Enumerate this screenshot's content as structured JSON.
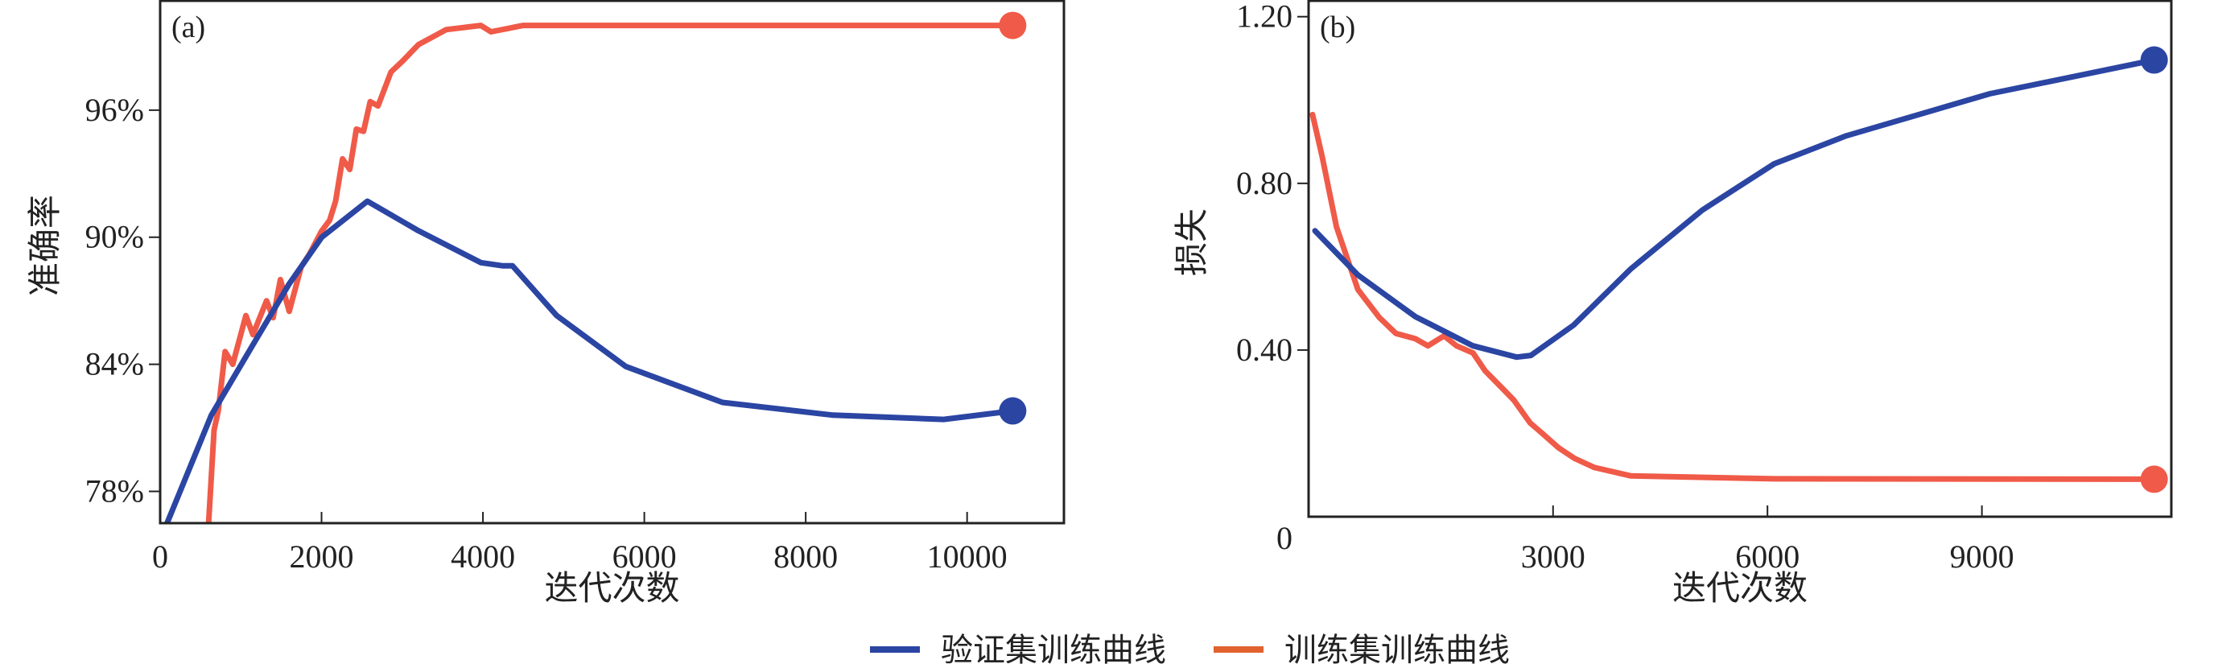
{
  "colors": {
    "validation": "#2b45a3",
    "training": "#f05a48",
    "legend_training": "#e0622e",
    "axis": "#222222"
  },
  "legend": {
    "items": [
      {
        "label": "验证集训练曲线",
        "color": "#2b45a3"
      },
      {
        "label": "训练集训练曲线",
        "color": "#e0622e"
      }
    ],
    "placement": "bottom-center"
  },
  "chart_data": [
    {
      "type": "line",
      "panel_label": "(a)",
      "xlabel": "迭代次数",
      "ylabel": "准确率",
      "xlim": [
        0,
        11200
      ],
      "ylim": [
        76.5,
        101.2
      ],
      "xticks": [
        0,
        2000,
        4000,
        6000,
        8000,
        10000
      ],
      "xtick_labels": [
        "0",
        "2000",
        "4000",
        "6000",
        "8000",
        "10000"
      ],
      "yticks": [
        78,
        84,
        90,
        96
      ],
      "ytick_labels": [
        "78%",
        "84%",
        "90%",
        "96%"
      ],
      "series": [
        {
          "name": "验证集训练曲线",
          "color": "#2b45a3",
          "end_marker": true,
          "x": [
            86,
            634,
            1147,
            1600,
            2003,
            2568,
            3202,
            3973,
            4250,
            4366,
            4914,
            5770,
            6969,
            8339,
            9709,
            10565
          ],
          "y": [
            76.5,
            81.6,
            84.9,
            87.8,
            90.0,
            91.7,
            90.3,
            88.8,
            88.65,
            88.65,
            86.3,
            83.9,
            82.2,
            81.6,
            81.4,
            81.8
          ]
        },
        {
          "name": "训练集训练曲线",
          "color": "#f05a48",
          "end_marker": true,
          "x": [
            600,
            668,
            720,
            805,
            900,
            1062,
            1150,
            1318,
            1400,
            1490,
            1600,
            1747,
            1850,
            2003,
            2100,
            2174,
            2260,
            2350,
            2431,
            2520,
            2603,
            2700,
            2860,
            3000,
            3202,
            3400,
            3545,
            3973,
            4100,
            4500,
            10565
          ],
          "y": [
            76.5,
            80.9,
            81.8,
            84.6,
            84.0,
            86.3,
            85.4,
            87.0,
            86.2,
            88.0,
            86.5,
            88.6,
            89.2,
            90.3,
            90.8,
            91.7,
            93.7,
            93.2,
            95.1,
            95.0,
            96.4,
            96.2,
            97.8,
            98.3,
            99.1,
            99.5,
            99.8,
            100.0,
            99.7,
            100.0,
            100.0
          ]
        }
      ]
    },
    {
      "type": "line",
      "panel_label": "(b)",
      "xlabel": "迭代次数",
      "ylabel": "损失",
      "xlim": [
        -420,
        11650
      ],
      "ylim": [
        0,
        1.24
      ],
      "xticks": [
        3000,
        6000,
        9000
      ],
      "xtick_labels": [
        "3000",
        "6000",
        "9000"
      ],
      "yticks": [
        0,
        0.4,
        0.8,
        1.2
      ],
      "ytick_labels": [
        "0",
        "0.40",
        "0.80",
        "1.20"
      ],
      "series": [
        {
          "name": "验证集训练曲线",
          "color": "#2b45a3",
          "end_marker": true,
          "x": [
            -330,
            270,
            1075,
            1880,
            2490,
            2690,
            3290,
            4090,
            5090,
            6095,
            7100,
            9110,
            11410
          ],
          "y": [
            0.686,
            0.58,
            0.48,
            0.41,
            0.383,
            0.387,
            0.46,
            0.595,
            0.736,
            0.847,
            0.914,
            1.015,
            1.096
          ]
        },
        {
          "name": "训练集训练曲线",
          "color": "#f05a48",
          "end_marker": true,
          "x": [
            -365,
            -230,
            -30,
            270,
            570,
            800,
            1075,
            1250,
            1475,
            1650,
            1880,
            2050,
            2280,
            2450,
            2680,
            2850,
            3080,
            3300,
            3580,
            4090,
            6095,
            11410
          ],
          "y": [
            0.965,
            0.864,
            0.696,
            0.545,
            0.478,
            0.44,
            0.427,
            0.41,
            0.434,
            0.41,
            0.393,
            0.35,
            0.31,
            0.28,
            0.225,
            0.2,
            0.165,
            0.14,
            0.118,
            0.098,
            0.091,
            0.09
          ]
        }
      ]
    }
  ]
}
